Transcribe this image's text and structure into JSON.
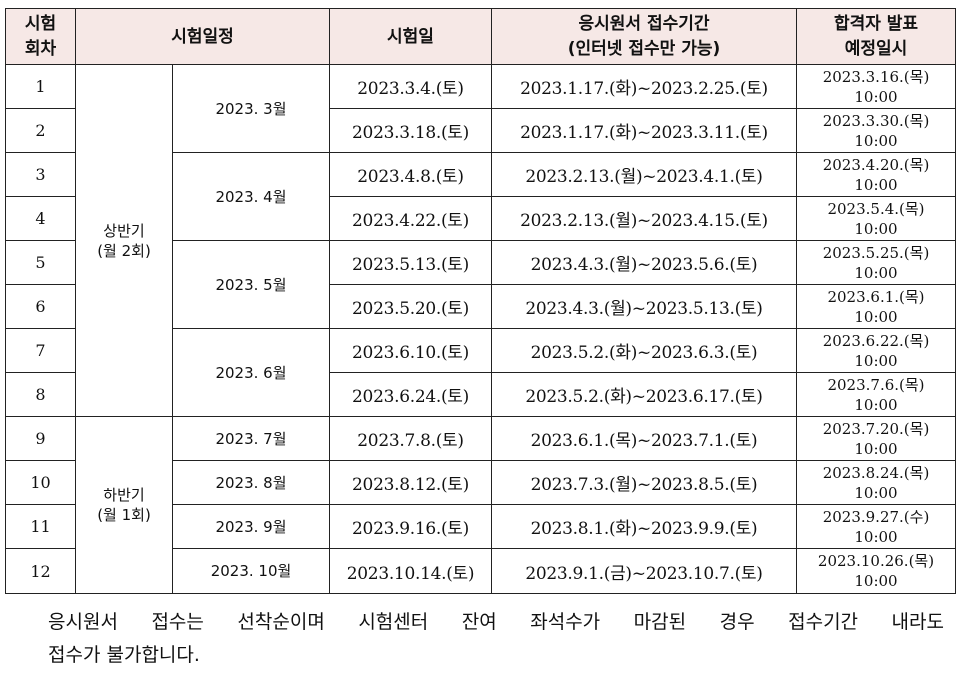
{
  "table": {
    "headers": {
      "round_line1": "시험",
      "round_line2": "회차",
      "schedule": "시험일정",
      "exam_date": "시험일",
      "application_line1": "응시원서 접수기간",
      "application_line2": "(인터넷 접수만 가능)",
      "announce_line1": "합격자 발표",
      "announce_line2": "예정일시"
    },
    "halves": [
      {
        "line1": "상반기",
        "line2": "(월 2회)"
      },
      {
        "line1": "하반기",
        "line2": "(월 1회)"
      }
    ],
    "months": [
      "2023. 3월",
      "2023. 4월",
      "2023. 5월",
      "2023. 6월",
      "2023. 7월",
      "2023. 8월",
      "2023. 9월",
      "2023. 10월"
    ],
    "rows": [
      {
        "round": "1",
        "exam_date": "2023.3.4.(토)",
        "period": "2023.1.17.(화)~2023.2.25.(토)",
        "announce_date": "2023.3.16.(목)",
        "announce_time": "10:00"
      },
      {
        "round": "2",
        "exam_date": "2023.3.18.(토)",
        "period": "2023.1.17.(화)~2023.3.11.(토)",
        "announce_date": "2023.3.30.(목)",
        "announce_time": "10:00"
      },
      {
        "round": "3",
        "exam_date": "2023.4.8.(토)",
        "period": "2023.2.13.(월)~2023.4.1.(토)",
        "announce_date": "2023.4.20.(목)",
        "announce_time": "10:00"
      },
      {
        "round": "4",
        "exam_date": "2023.4.22.(토)",
        "period": "2023.2.13.(월)~2023.4.15.(토)",
        "announce_date": "2023.5.4.(목)",
        "announce_time": "10:00"
      },
      {
        "round": "5",
        "exam_date": "2023.5.13.(토)",
        "period": "2023.4.3.(월)~2023.5.6.(토)",
        "announce_date": "2023.5.25.(목)",
        "announce_time": "10:00"
      },
      {
        "round": "6",
        "exam_date": "2023.5.20.(토)",
        "period": "2023.4.3.(월)~2023.5.13.(토)",
        "announce_date": "2023.6.1.(목)",
        "announce_time": "10:00"
      },
      {
        "round": "7",
        "exam_date": "2023.6.10.(토)",
        "period": "2023.5.2.(화)~2023.6.3.(토)",
        "announce_date": "2023.6.22.(목)",
        "announce_time": "10:00"
      },
      {
        "round": "8",
        "exam_date": "2023.6.24.(토)",
        "period": "2023.5.2.(화)~2023.6.17.(토)",
        "announce_date": "2023.7.6.(목)",
        "announce_time": "10:00"
      },
      {
        "round": "9",
        "exam_date": "2023.7.8.(토)",
        "period": "2023.6.1.(목)~2023.7.1.(토)",
        "announce_date": "2023.7.20.(목)",
        "announce_time": "10:00"
      },
      {
        "round": "10",
        "exam_date": "2023.8.12.(토)",
        "period": "2023.7.3.(월)~2023.8.5.(토)",
        "announce_date": "2023.8.24.(목)",
        "announce_time": "10:00"
      },
      {
        "round": "11",
        "exam_date": "2023.9.16.(토)",
        "period": "2023.8.1.(화)~2023.9.9.(토)",
        "announce_date": "2023.9.27.(수)",
        "announce_time": "10:00"
      },
      {
        "round": "12",
        "exam_date": "2023.10.14.(토)",
        "period": "2023.9.1.(금)~2023.10.7.(토)",
        "announce_date": "2023.10.26.(목)",
        "announce_time": "10:00"
      }
    ]
  },
  "colors": {
    "header_bg": "#f6e8e6",
    "border": "#222222"
  },
  "note": {
    "bullet": "○",
    "line1": "응시원서 접수는 선착순이며 시험센터 잔여 좌석수가 마감된 경우 접수기간 내라도",
    "line2": "접수가 불가합니다."
  }
}
